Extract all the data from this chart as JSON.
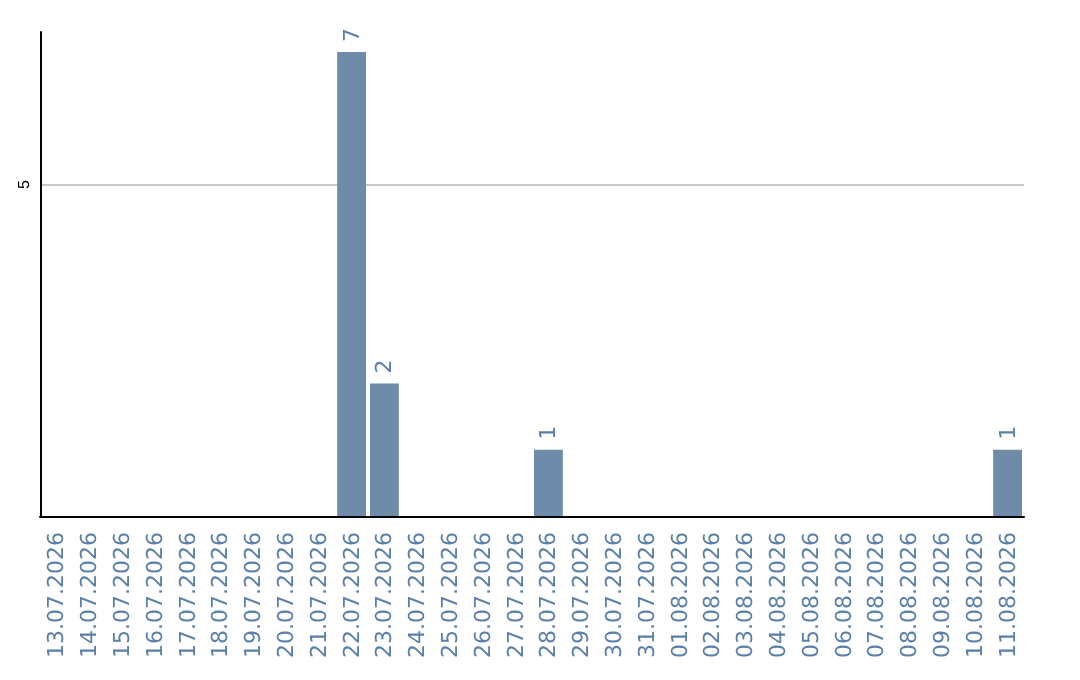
{
  "chart_data": {
    "type": "bar",
    "categories": [
      "13.07.2026",
      "14.07.2026",
      "15.07.2026",
      "16.07.2026",
      "17.07.2026",
      "18.07.2026",
      "19.07.2026",
      "20.07.2026",
      "21.07.2026",
      "22.07.2026",
      "23.07.2026",
      "24.07.2026",
      "25.07.2026",
      "26.07.2026",
      "27.07.2026",
      "28.07.2026",
      "29.07.2026",
      "30.07.2026",
      "31.07.2026",
      "01.08.2026",
      "02.08.2026",
      "03.08.2026",
      "04.08.2026",
      "05.08.2026",
      "06.08.2026",
      "07.08.2026",
      "08.08.2026",
      "09.08.2026",
      "10.08.2026",
      "11.08.2026"
    ],
    "values": [
      0,
      0,
      0,
      0,
      0,
      0,
      0,
      0,
      0,
      7,
      2,
      0,
      0,
      0,
      0,
      1,
      0,
      0,
      0,
      0,
      0,
      0,
      0,
      0,
      0,
      0,
      0,
      0,
      0,
      1
    ],
    "value_labels": [
      null,
      null,
      null,
      null,
      null,
      null,
      null,
      null,
      null,
      "7",
      "2",
      null,
      null,
      null,
      null,
      "1",
      null,
      null,
      null,
      null,
      null,
      null,
      null,
      null,
      null,
      null,
      null,
      null,
      null,
      "1"
    ],
    "color": "#6e8caa",
    "ylim": [
      0,
      7.3
    ],
    "yticks": [
      5
    ],
    "grid": "y"
  }
}
